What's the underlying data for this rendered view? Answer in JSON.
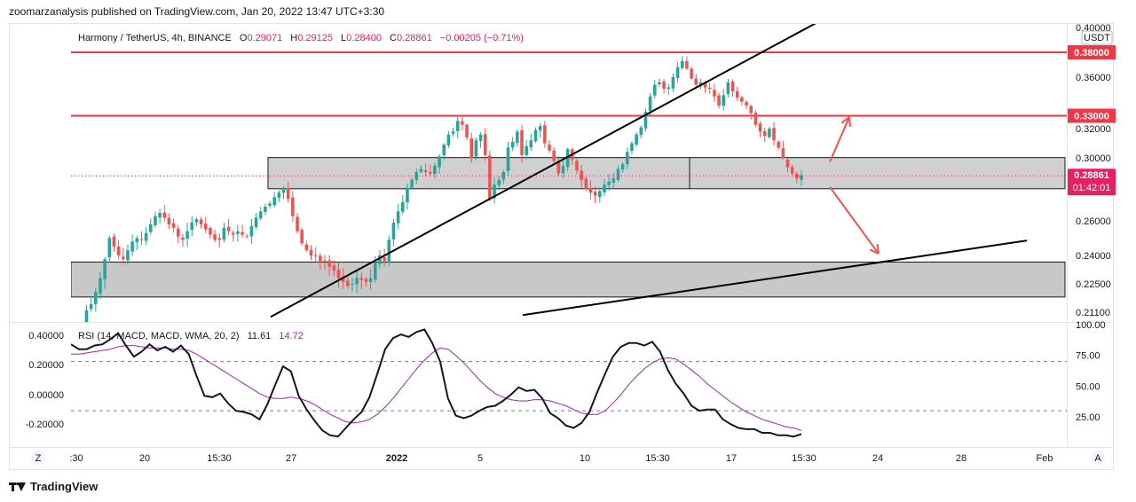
{
  "header": {
    "text": "zoomarzanalysis published on TradingView.com, Jan 20, 2022 13:47 UTC+3:30"
  },
  "footer": {
    "brand": "TradingView",
    "logo_icon": "tradingview-logo-icon"
  },
  "colors": {
    "up": "#26a69a",
    "down": "#ef5350",
    "level": "#f23645",
    "price_badge": "#e91e63",
    "rsi": "#131722",
    "rsi_ma": "#9c27b0",
    "zone_fill": "#c8c8c8"
  },
  "chart_data": [
    {
      "type": "candlestick",
      "legend": {
        "symbol": "Harmony / TetherUS, 4h, BINANCE",
        "o_label": "O",
        "o": "0.29071",
        "h_label": "H",
        "h": "0.29125",
        "l_label": "L",
        "l": "0.28400",
        "c_label": "C",
        "c": "0.28861",
        "change": "−0.00205 (−0.71%)"
      },
      "currency": "USDT",
      "y_ticks": [
        "0.40000",
        "0.36000",
        "0.32000",
        "0.30000",
        "0.26000",
        "0.24000",
        "0.22500",
        "0.21100"
      ],
      "x_ticks": [
        ":30",
        "20",
        "15:30",
        "27",
        "2022",
        "5",
        "10",
        "15:30",
        "17",
        "15:30",
        "24",
        "28",
        "Feb"
      ],
      "price_label": {
        "price": "0.28861",
        "countdown": "01:42:01"
      },
      "horizontal_levels": [
        {
          "price": 0.38,
          "label": "0.38000"
        },
        {
          "price": 0.33,
          "label": "0.33000"
        }
      ],
      "zones": [
        {
          "from": 0.2804,
          "to": 0.3002
        },
        {
          "from": 0.2185,
          "to": 0.2365
        }
      ],
      "trendlines": [
        {
          "name": "rising-support-trendline",
          "from": {
            "date": "2021-12-26",
            "price": 0.2087
          },
          "to": {
            "date": "2022-01-22",
            "price": 0.413
          }
        },
        {
          "name": "lower-rising-trendline",
          "from": {
            "date": "2022-01-07",
            "price": 0.2096
          },
          "to": {
            "date": "2022-01-31",
            "price": 0.2486
          }
        }
      ],
      "arrows": [
        {
          "name": "up-arrow",
          "from": {
            "date": "2022-01-19",
            "price": 0.2975
          },
          "to": {
            "date": "2022-01-20",
            "price": 0.329
          }
        },
        {
          "name": "down-arrow",
          "from": {
            "date": "2022-01-19",
            "price": 0.2815
          },
          "to": {
            "date": "2022-01-20",
            "price": 0.241
          }
        }
      ],
      "series_keypoints_close": [
        0.199,
        0.203,
        0.205,
        0.212,
        0.215,
        0.221,
        0.228,
        0.238,
        0.25,
        0.245,
        0.24,
        0.238,
        0.243,
        0.248,
        0.25,
        0.249,
        0.253,
        0.258,
        0.263,
        0.265,
        0.262,
        0.258,
        0.256,
        0.251,
        0.249,
        0.254,
        0.259,
        0.261,
        0.258,
        0.255,
        0.252,
        0.249,
        0.249,
        0.256,
        0.254,
        0.252,
        0.254,
        0.252,
        0.251,
        0.257,
        0.262,
        0.266,
        0.269,
        0.271,
        0.275,
        0.278,
        0.281,
        0.274,
        0.263,
        0.254,
        0.247,
        0.243,
        0.24,
        0.24,
        0.237,
        0.237,
        0.234,
        0.232,
        0.228,
        0.226,
        0.224,
        0.225,
        0.228,
        0.227,
        0.226,
        0.228,
        0.236,
        0.24,
        0.237,
        0.249,
        0.259,
        0.266,
        0.272,
        0.281,
        0.286,
        0.291,
        0.293,
        0.291,
        0.29,
        0.295,
        0.301,
        0.309,
        0.316,
        0.318,
        0.326,
        0.323,
        0.314,
        0.3,
        0.312,
        0.316,
        0.302,
        0.274,
        0.283,
        0.286,
        0.291,
        0.307,
        0.311,
        0.318,
        0.302,
        0.308,
        0.312,
        0.319,
        0.322,
        0.31,
        0.305,
        0.298,
        0.29,
        0.295,
        0.306,
        0.299,
        0.292,
        0.286,
        0.28,
        0.278,
        0.276,
        0.279,
        0.283,
        0.285,
        0.287,
        0.293,
        0.296,
        0.304,
        0.31,
        0.316,
        0.321,
        0.333,
        0.345,
        0.354,
        0.356,
        0.351,
        0.352,
        0.36,
        0.368,
        0.373,
        0.367,
        0.359,
        0.354,
        0.356,
        0.352,
        0.351,
        0.345,
        0.338,
        0.346,
        0.356,
        0.349,
        0.344,
        0.341,
        0.338,
        0.332,
        0.323,
        0.318,
        0.315,
        0.32,
        0.312,
        0.307,
        0.3,
        0.294,
        0.29,
        0.287,
        0.289
      ]
    },
    {
      "type": "line",
      "legend": {
        "name": "RSI (14, MACD, MACD, WMA, 20, 2)",
        "value1": "11.61",
        "value2": "14.72"
      },
      "y_ticks_right": [
        "100.00",
        "75.00",
        "50.00",
        "25.00"
      ],
      "y_ticks_left": [
        "0.40000",
        "0.20000",
        "0.00000",
        "-0.20000"
      ],
      "dashed_levels": [
        70,
        30
      ],
      "ylim": [
        0,
        100
      ],
      "series": [
        {
          "name": "RSI",
          "values": [
            84,
            80,
            80,
            83,
            84,
            88,
            93,
            83,
            74,
            78,
            84,
            79,
            82,
            78,
            83,
            76,
            58,
            42,
            41,
            44,
            36,
            30,
            29,
            27,
            23,
            35,
            51,
            66,
            62,
            42,
            31,
            22,
            14,
            10,
            9,
            16,
            23,
            29,
            41,
            60,
            80,
            89,
            92,
            90,
            94,
            96,
            85,
            70,
            40,
            26,
            24,
            26,
            30,
            33,
            34,
            38,
            43,
            49,
            46,
            47,
            40,
            28,
            24,
            18,
            16,
            20,
            29,
            45,
            60,
            74,
            82,
            85,
            85,
            83,
            86,
            78,
            63,
            52,
            44,
            34,
            30,
            31,
            31,
            23,
            19,
            16,
            15,
            15,
            12,
            12,
            10,
            10,
            9,
            11
          ]
        },
        {
          "name": "RSI-based MA",
          "values": [
            76,
            76,
            77,
            78,
            79,
            80,
            82,
            83,
            83,
            82,
            81,
            81,
            81,
            80,
            80,
            79,
            76,
            72,
            68,
            64,
            60,
            56,
            52,
            48,
            44,
            41,
            40,
            40,
            41,
            40,
            38,
            35,
            31,
            27,
            24,
            21,
            20,
            21,
            23,
            27,
            33,
            40,
            48,
            56,
            64,
            71,
            77,
            81,
            80,
            75,
            69,
            62,
            55,
            49,
            44,
            41,
            39,
            38,
            38,
            39,
            39,
            38,
            36,
            34,
            31,
            28,
            27,
            27,
            30,
            36,
            43,
            51,
            58,
            64,
            69,
            72,
            73,
            72,
            68,
            63,
            58,
            52,
            47,
            42,
            37,
            33,
            29,
            26,
            23,
            21,
            19,
            17,
            16,
            14
          ]
        }
      ]
    }
  ],
  "bottom_bar": {
    "left_button": "Z",
    "right_button": "A"
  }
}
